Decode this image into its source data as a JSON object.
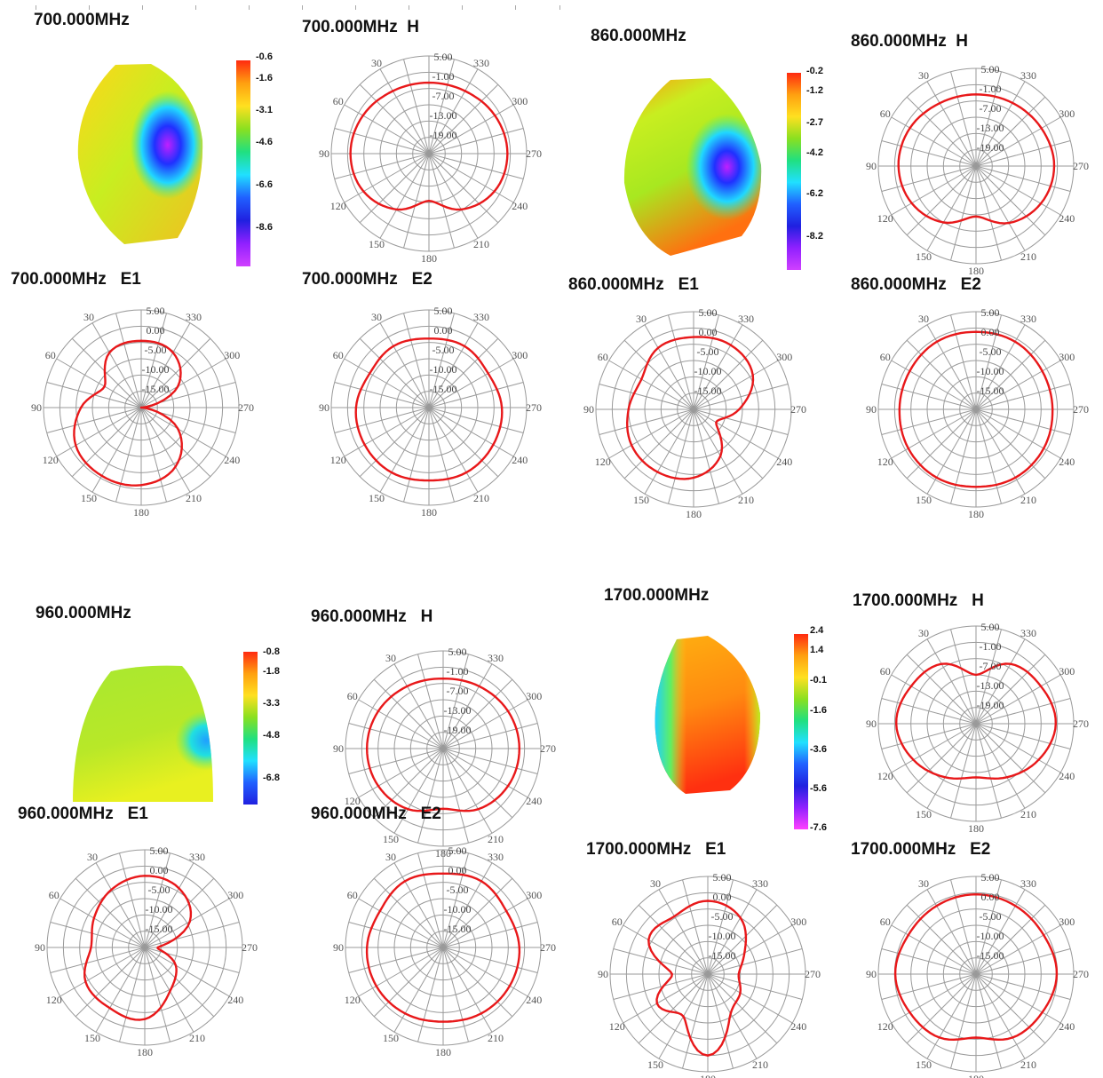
{
  "polar_angle_labels": [
    "30",
    "330",
    "60",
    "300",
    "90",
    "270",
    "120",
    "240",
    "150",
    "210",
    "180"
  ],
  "colors": {
    "trace": "#e8181a",
    "grid": "#9a9a9a",
    "bg": "#ffffff"
  },
  "figures_3d": [
    {
      "title": "700.000MHz",
      "colorbar_ticks": [
        "-0.6",
        "-1.6",
        "-3.1",
        "-4.6",
        "-6.6",
        "-8.6"
      ]
    },
    {
      "title": "860.000MHz",
      "colorbar_ticks": [
        "-0.2",
        "-1.2",
        "-2.7",
        "-4.2",
        "-6.2",
        "-8.2"
      ]
    },
    {
      "title": "960.000MHz",
      "colorbar_ticks": [
        "-0.8",
        "-1.8",
        "-3.3",
        "-4.8",
        "-6.8"
      ]
    },
    {
      "title": "1700.000MHz",
      "colorbar_ticks": [
        "2.4",
        "1.4",
        "-0.1",
        "-1.6",
        "-3.6",
        "-5.6",
        "-7.6"
      ]
    }
  ],
  "chart_data": [
    {
      "id": "p700H",
      "type": "polar",
      "title": "700.000MHz  H",
      "radial_labels": [
        "5.00",
        "-1.00",
        "-7.00",
        "-13.00",
        "-19.00"
      ],
      "rlim": [
        -25,
        5
      ],
      "theta_deg": [
        0,
        30,
        60,
        90,
        120,
        150,
        180,
        210,
        240,
        270,
        300,
        330
      ],
      "r": [
        -3.2,
        -2.8,
        -1.6,
        -0.9,
        -1.8,
        -5.2,
        -10.5,
        -5.2,
        -1.8,
        -0.9,
        -1.6,
        -2.8
      ]
    },
    {
      "id": "p860H",
      "type": "polar",
      "title": "860.000MHz  H",
      "radial_labels": [
        "5.00",
        "-1.00",
        "-7.00",
        "-13.00",
        "-19.00"
      ],
      "rlim": [
        -25,
        5
      ],
      "theta_deg": [
        0,
        30,
        60,
        90,
        120,
        150,
        180,
        210,
        240,
        270,
        300,
        330
      ],
      "r": [
        -3.0,
        -2.7,
        -1.6,
        -1.2,
        -2.2,
        -5.0,
        -9.5,
        -4.8,
        -2.0,
        -1.0,
        -1.8,
        -2.6
      ]
    },
    {
      "id": "p700E1",
      "type": "polar",
      "title": "700.000MHz   E1",
      "radial_labels": [
        "5.00",
        "0.00",
        "-5.00",
        "-10.00",
        "-15.00"
      ],
      "rlim": [
        -25,
        5
      ],
      "theta_deg": [
        0,
        30,
        60,
        90,
        120,
        150,
        180,
        210,
        240,
        270,
        300,
        330
      ],
      "r": [
        -4.5,
        -5.5,
        -12,
        -6.5,
        -1.8,
        -0.8,
        -1.2,
        -4,
        -12,
        -25,
        -12,
        -5.5
      ]
    },
    {
      "id": "p700E2",
      "type": "polar",
      "title": "700.000MHz   E2",
      "radial_labels": [
        "5.00",
        "0.00",
        "-5.00",
        "-10.00",
        "-15.00"
      ],
      "rlim": [
        -25,
        5
      ],
      "theta_deg": [
        0,
        30,
        60,
        90,
        120,
        150,
        180,
        210,
        240,
        270,
        300,
        330
      ],
      "r": [
        -3.8,
        -3.2,
        -4.0,
        -2.6,
        -2.2,
        -2.0,
        -2.6,
        -2.0,
        -2.2,
        -2.6,
        -4.0,
        -3.2
      ]
    },
    {
      "id": "p860E1",
      "type": "polar",
      "title": "860.000MHz   E1",
      "radial_labels": [
        "5.00",
        "0.00",
        "-5.00",
        "-10.00",
        "-15.00"
      ],
      "rlim": [
        -25,
        5
      ],
      "theta_deg": [
        0,
        30,
        60,
        90,
        120,
        150,
        180,
        210,
        240,
        270,
        300,
        330
      ],
      "r": [
        -2.8,
        -3.2,
        -6.5,
        -5.0,
        -3.0,
        -2.8,
        -4.0,
        -8.5,
        -17,
        -11,
        -4,
        -2.2
      ]
    },
    {
      "id": "p860E2",
      "type": "polar",
      "title": "860.000MHz   E2",
      "radial_labels": [
        "5.00",
        "0.00",
        "-5.00",
        "-10.00",
        "-15.00"
      ],
      "rlim": [
        -25,
        5
      ],
      "theta_deg": [
        0,
        30,
        60,
        90,
        120,
        150,
        180,
        210,
        240,
        270,
        300,
        330
      ],
      "r": [
        -1.2,
        -1.0,
        -1.5,
        -1.5,
        -1.0,
        -0.8,
        -1.2,
        -0.8,
        -1.0,
        -1.5,
        -1.5,
        -1.0
      ]
    },
    {
      "id": "p960H",
      "type": "polar",
      "title": "960.000MHz   H",
      "radial_labels": [
        "5.00",
        "-1.00",
        "-7.00",
        "-13.00",
        "-19.00"
      ],
      "rlim": [
        -25,
        5
      ],
      "theta_deg": [
        0,
        30,
        60,
        90,
        120,
        150,
        180,
        210,
        240,
        270,
        300,
        330
      ],
      "r": [
        -3.5,
        -2.9,
        -2.0,
        -1.6,
        -2.0,
        -3.5,
        -6.5,
        -3.5,
        -2.0,
        -1.6,
        -2.0,
        -2.9
      ]
    },
    {
      "id": "p1700H",
      "type": "polar",
      "title": "1700.000MHz   H",
      "radial_labels": [
        "5.00",
        "-1.00",
        "-7.00",
        "-13.00",
        "-19.00"
      ],
      "rlim": [
        -25,
        5
      ],
      "theta_deg": [
        0,
        30,
        60,
        90,
        120,
        150,
        180,
        210,
        240,
        270,
        300,
        330
      ],
      "r": [
        -10.0,
        -3.8,
        -2.0,
        -0.5,
        -2.8,
        -6.0,
        -8.5,
        -6.0,
        -2.8,
        -0.5,
        -2.0,
        -3.8
      ]
    },
    {
      "id": "p960E1",
      "type": "polar",
      "title": "960.000MHz   E1",
      "radial_labels": [
        "5.00",
        "0.00",
        "-5.00",
        "-10.00",
        "-15.00"
      ],
      "rlim": [
        -25,
        5
      ],
      "theta_deg": [
        0,
        30,
        60,
        90,
        120,
        150,
        180,
        210,
        240,
        270,
        300,
        330
      ],
      "r": [
        -3.0,
        -4.5,
        -7.0,
        -8.5,
        -4.0,
        -3.5,
        -3.0,
        -9.5,
        -14,
        -21,
        -9,
        -4.0
      ]
    },
    {
      "id": "p960E2",
      "type": "polar",
      "title": "960.000MHz   E2",
      "radial_labels": [
        "5.00",
        "0.00",
        "-5.00",
        "-10.00",
        "-15.00"
      ],
      "rlim": [
        -25,
        5
      ],
      "theta_deg": [
        0,
        30,
        60,
        90,
        120,
        150,
        180,
        210,
        240,
        270,
        300,
        330
      ],
      "r": [
        -2.3,
        -1.5,
        -2.6,
        -1.6,
        -1.3,
        -1.6,
        -2.2,
        -1.6,
        -1.4,
        -1.6,
        -2.6,
        -1.5
      ]
    },
    {
      "id": "p1700E1",
      "type": "polar",
      "title": "1700.000MHz   E1",
      "radial_labels": [
        "5.00",
        "0.00",
        "-5.00",
        "-10.00",
        "-15.00"
      ],
      "rlim": [
        -25,
        5
      ],
      "theta_deg": [
        0,
        30,
        60,
        90,
        120,
        150,
        180,
        210,
        240,
        270,
        300,
        330
      ],
      "r": [
        -2.5,
        -4.5,
        -4.0,
        -14.0,
        -7.0,
        -10.0,
        0.0,
        -11.0,
        -13.5,
        -15.5,
        -12.0,
        -5.0
      ]
    },
    {
      "id": "p1700E2",
      "type": "polar",
      "title": "1700.000MHz   E2",
      "radial_labels": [
        "5.00",
        "0.00",
        "-5.00",
        "-10.00",
        "-15.00"
      ],
      "rlim": [
        -25,
        5
      ],
      "theta_deg": [
        0,
        30,
        60,
        90,
        120,
        150,
        180,
        210,
        240,
        270,
        300,
        330
      ],
      "r": [
        -0.5,
        -0.8,
        -1.0,
        -0.2,
        -1.5,
        -2.5,
        -5.5,
        -2.5,
        -1.5,
        -0.2,
        -1.0,
        -0.8
      ]
    }
  ]
}
